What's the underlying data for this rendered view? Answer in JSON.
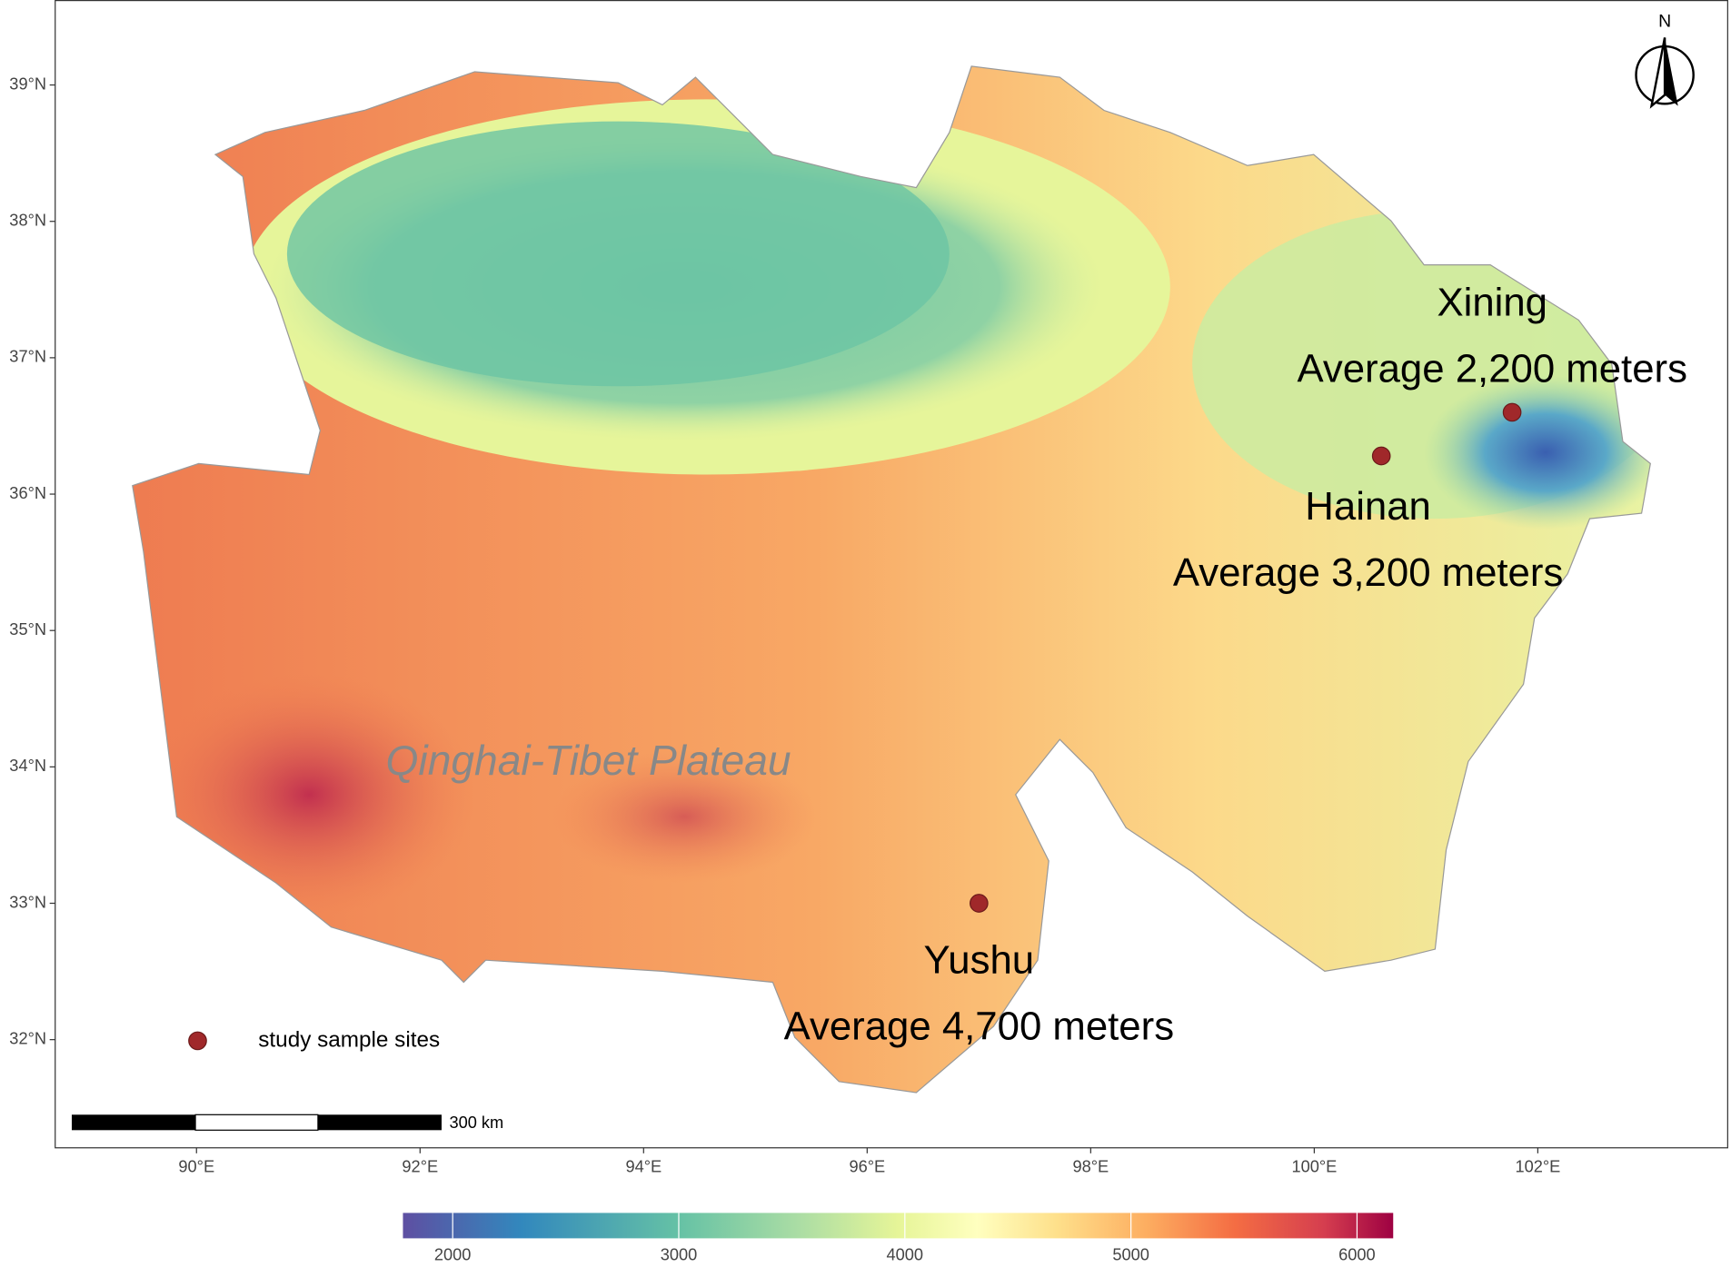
{
  "map": {
    "north": "N",
    "region_label": "Qinghai-Tibet Plateau",
    "legend": "study sample sites",
    "scale_bar": "300 km",
    "lat_ticks": [
      {
        "value": 39,
        "label": "39°N"
      },
      {
        "value": 38,
        "label": "38°N"
      },
      {
        "value": 37,
        "label": "37°N"
      },
      {
        "value": 36,
        "label": "36°N"
      },
      {
        "value": 35,
        "label": "35°N"
      },
      {
        "value": 34,
        "label": "34°N"
      },
      {
        "value": 33,
        "label": "33°N"
      },
      {
        "value": 32,
        "label": "32°N"
      }
    ],
    "lon_ticks": [
      {
        "value": 90,
        "label": "90°E"
      },
      {
        "value": 92,
        "label": "92°E"
      },
      {
        "value": 94,
        "label": "94°E"
      },
      {
        "value": 96,
        "label": "96°E"
      },
      {
        "value": 98,
        "label": "98°E"
      },
      {
        "value": 100,
        "label": "100°E"
      },
      {
        "value": 102,
        "label": "102°E"
      }
    ],
    "sites": [
      {
        "name": "Xining",
        "label": "Average 2,200 meters",
        "lon": 101.77,
        "lat": 36.6
      },
      {
        "name": "Hainan",
        "label": "Average 3,200 meters",
        "lon": 100.6,
        "lat": 36.28
      },
      {
        "name": "Yushu",
        "label": "Average 4,700 meters",
        "lon": 97.0,
        "lat": 33.0
      }
    ],
    "colorbar": {
      "lim": [
        1780,
        6160
      ],
      "ticks": [
        2000,
        3000,
        4000,
        5000,
        6000
      ]
    }
  }
}
